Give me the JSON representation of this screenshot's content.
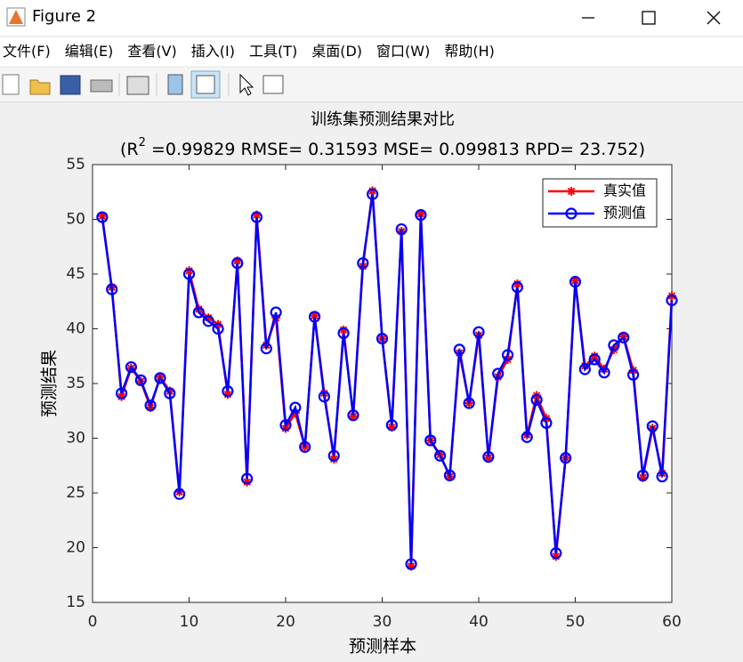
{
  "window": {
    "title": "Figure 2"
  },
  "menu": [
    "文件(F)",
    "编辑(E)",
    "查看(V)",
    "插入(I)",
    "工具(T)",
    "桌面(D)",
    "窗口(W)",
    "帮助(H)"
  ],
  "chart_data": {
    "type": "line",
    "title": "训练集预测结果对比",
    "subtitle": [
      "(R",
      "2",
      " =0.99829 RMSE= 0.31593 MSE= 0.099813 RPD= 23.752)"
    ],
    "xlabel": "预测样本",
    "ylabel": "预测结果",
    "x": [
      1,
      2,
      3,
      4,
      5,
      6,
      7,
      8,
      9,
      10,
      11,
      12,
      13,
      14,
      15,
      16,
      17,
      18,
      19,
      20,
      21,
      22,
      23,
      24,
      25,
      26,
      27,
      28,
      29,
      30,
      31,
      32,
      33,
      34,
      35,
      36,
      37,
      38,
      39,
      40,
      41,
      42,
      43,
      44,
      45,
      46,
      47,
      48,
      49,
      50,
      51,
      52,
      53,
      54,
      55,
      56,
      57,
      58,
      59,
      60
    ],
    "series": [
      {
        "name": "真实值",
        "color": "#ff0000",
        "marker": "*",
        "values": [
          50.3,
          43.8,
          33.8,
          36.4,
          35.2,
          32.8,
          35.6,
          34.3,
          25.1,
          45.3,
          41.8,
          41.0,
          40.4,
          34.0,
          46.2,
          26.0,
          50.4,
          38.5,
          41.0,
          30.9,
          32.3,
          29.2,
          41.2,
          34.1,
          28.1,
          39.9,
          32.0,
          45.7,
          52.6,
          39.1,
          31.0,
          48.9,
          18.3,
          50.5,
          29.8,
          28.5,
          26.5,
          37.8,
          33.2,
          39.4,
          28.2,
          35.6,
          37.2,
          44.1,
          30.3,
          33.9,
          31.8,
          19.2,
          28.2,
          44.4,
          36.6,
          37.5,
          36.3,
          38.1,
          39.3,
          36.2,
          26.4,
          30.9,
          26.8,
          43.0
        ]
      },
      {
        "name": "预测值",
        "color": "#0000ff",
        "marker": "o",
        "values": [
          50.2,
          43.6,
          34.1,
          36.5,
          35.3,
          33.0,
          35.5,
          34.1,
          24.9,
          45.0,
          41.5,
          40.7,
          40.0,
          34.3,
          46.0,
          26.3,
          50.2,
          38.2,
          41.5,
          31.2,
          32.8,
          29.2,
          41.1,
          33.8,
          28.4,
          39.6,
          32.1,
          46.0,
          52.3,
          39.1,
          31.2,
          49.1,
          18.5,
          50.4,
          29.8,
          28.4,
          26.6,
          38.1,
          33.2,
          39.7,
          28.3,
          35.9,
          37.6,
          43.8,
          30.1,
          33.5,
          31.4,
          19.5,
          28.2,
          44.3,
          36.3,
          37.2,
          36.0,
          38.5,
          39.2,
          35.8,
          26.6,
          31.1,
          26.5,
          42.6
        ]
      }
    ],
    "xlim": [
      0,
      60
    ],
    "xticks": [
      0,
      10,
      20,
      30,
      40,
      50,
      60
    ],
    "ylim": [
      15,
      55
    ],
    "yticks": [
      15,
      20,
      25,
      30,
      35,
      40,
      45,
      50,
      55
    ],
    "grid": false,
    "legend": "upper right"
  }
}
